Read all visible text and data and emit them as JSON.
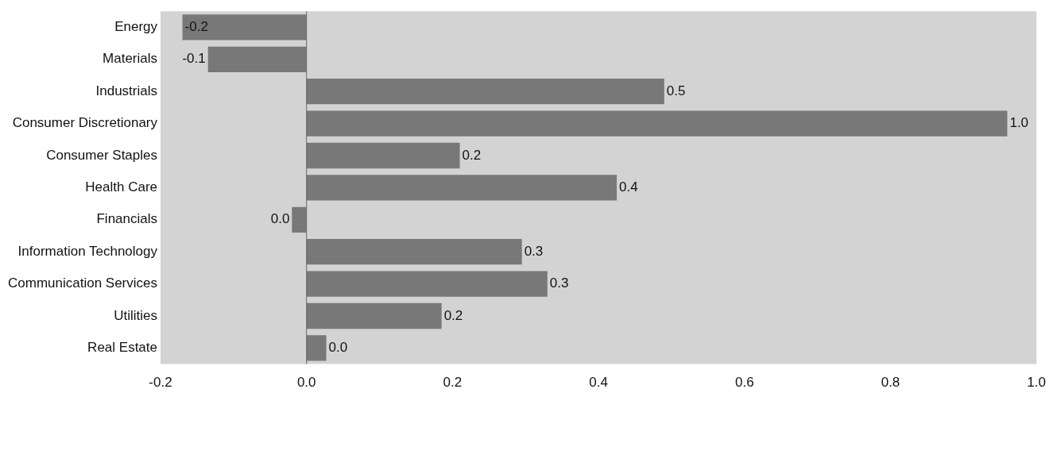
{
  "chart_data": {
    "type": "bar",
    "orientation": "horizontal",
    "categories": [
      "Energy",
      "Materials",
      "Industrials",
      "Consumer Discretionary",
      "Consumer Staples",
      "Health Care",
      "Financials",
      "Information Technology",
      "Communication Services",
      "Utilities",
      "Real Estate"
    ],
    "values": [
      -0.17,
      -0.135,
      0.49,
      0.96,
      0.21,
      0.425,
      -0.02,
      0.295,
      0.33,
      0.185,
      0.027
    ],
    "value_labels": [
      "-0.2",
      "-0.1",
      "0.5",
      "1.0",
      "0.2",
      "0.4",
      "0.0",
      "0.3",
      "0.3",
      "0.2",
      "0.0"
    ],
    "color": "#787878",
    "xlim": [
      -0.2,
      1.0
    ],
    "xticks": [
      {
        "value": -0.2,
        "label": "-0.2"
      },
      {
        "value": 0,
        "label": "0.0"
      },
      {
        "value": 0.2,
        "label": "0.2"
      },
      {
        "value": 0.4,
        "label": "0.4"
      },
      {
        "value": 0.6,
        "label": "0.6"
      },
      {
        "value": 0.8,
        "label": "0.8"
      },
      {
        "value": 1.0,
        "label": "1.0"
      }
    ],
    "ref_lines": [
      {
        "axis": "x",
        "value": 0,
        "color": "#666666"
      }
    ],
    "grid": false,
    "legend": false
  }
}
